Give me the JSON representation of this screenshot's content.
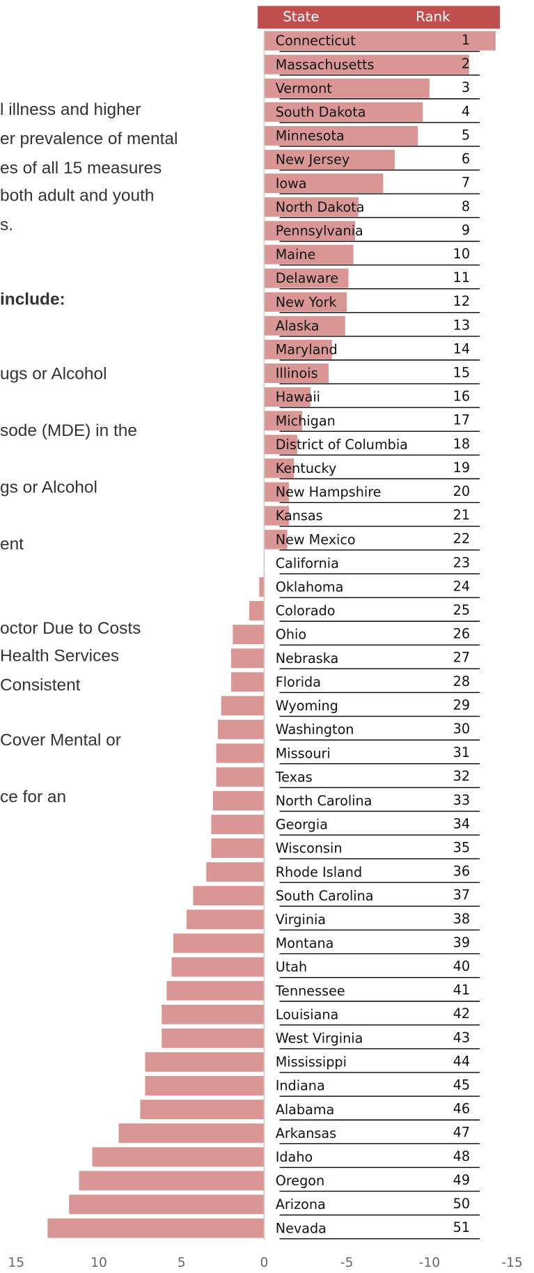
{
  "side_text": [
    "l illness and higher",
    "er prevalence of mental",
    "es of all 15 measures",
    "both adult and youth",
    "s.",
    "include:",
    "ugs or Alcohol",
    "sode (MDE) in the",
    "gs or Alcohol",
    "ent",
    "octor Due to Costs",
    "Health Services",
    "Consistent",
    "Cover Mental or",
    "ce for an"
  ],
  "chart_data": {
    "type": "barh",
    "column_headers": [
      "State",
      "Rank"
    ],
    "header_color": "#c0504d",
    "color": "#da9694",
    "categories": [
      "Connecticut",
      "Massachusetts",
      "Vermont",
      "South Dakota",
      "Minnesota",
      "New Jersey",
      "Iowa",
      "North Dakota",
      "Pennsylvania",
      "Maine",
      "Delaware",
      "New York",
      "Alaska",
      "Maryland",
      "Illinois",
      "Hawaii",
      "Michigan",
      "District of Columbia",
      "Kentucky",
      "New Hampshire",
      "Kansas",
      "New Mexico",
      "California",
      "Oklahoma",
      "Colorado",
      "Ohio",
      "Nebraska",
      "Florida",
      "Wyoming",
      "Washington",
      "Missouri",
      "Texas",
      "North Carolina",
      "Georgia",
      "Wisconsin",
      "Rhode Island",
      "South Carolina",
      "Virginia",
      "Montana",
      "Utah",
      "Tennessee",
      "Louisiana",
      "West Virginia",
      "Mississippi",
      "Indiana",
      "Alabama",
      "Arkansas",
      "Idaho",
      "Oregon",
      "Arizona",
      "Nevada"
    ],
    "ranks": [
      1,
      2,
      3,
      4,
      5,
      6,
      7,
      8,
      9,
      10,
      11,
      12,
      13,
      14,
      15,
      16,
      17,
      18,
      19,
      20,
      21,
      22,
      23,
      24,
      25,
      26,
      27,
      28,
      29,
      30,
      31,
      32,
      33,
      34,
      35,
      36,
      37,
      38,
      39,
      40,
      41,
      42,
      43,
      44,
      45,
      46,
      47,
      48,
      49,
      50,
      51
    ],
    "values": [
      -14.0,
      -12.4,
      -10.0,
      -9.6,
      -9.3,
      -7.9,
      -7.2,
      -5.7,
      -5.5,
      -5.4,
      -5.1,
      -5.0,
      -4.9,
      -4.1,
      -3.9,
      -2.8,
      -2.3,
      -2.0,
      -1.8,
      -1.5,
      -1.5,
      -1.4,
      0,
      0.3,
      0.9,
      1.9,
      2.0,
      2.0,
      2.6,
      2.8,
      2.9,
      2.9,
      3.1,
      3.2,
      3.2,
      3.5,
      4.3,
      4.7,
      5.5,
      5.6,
      5.9,
      6.2,
      6.2,
      7.2,
      7.2,
      7.5,
      8.8,
      10.4,
      11.2,
      11.8,
      13.1
    ],
    "xlim": [
      15,
      -15
    ],
    "xticks": [
      15,
      10,
      5,
      0,
      -5,
      -10,
      -15
    ]
  }
}
